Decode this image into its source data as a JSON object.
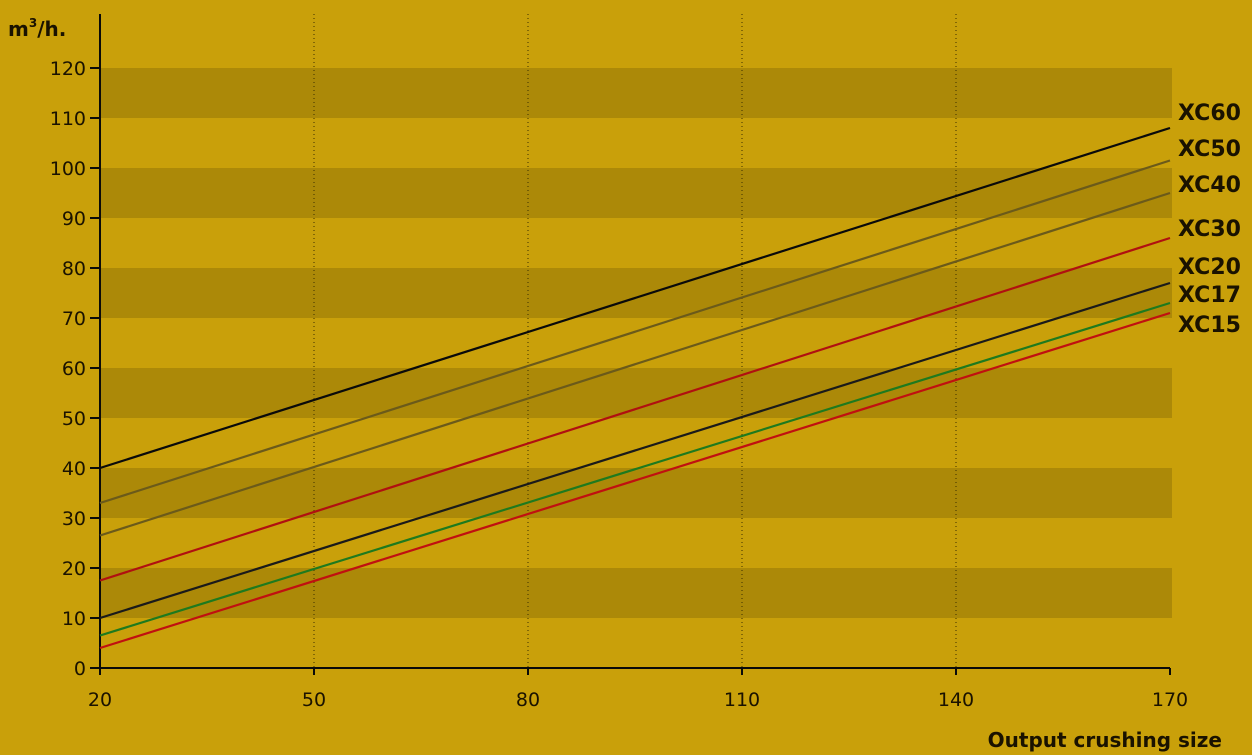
{
  "chart_data": {
    "type": "line",
    "ylabel_base": "m",
    "ylabel_sup": "3",
    "ylabel_suffix": "/h.",
    "xlabel": "Output crushing size",
    "xlim": [
      20,
      170
    ],
    "ylim": [
      0,
      120
    ],
    "x_ticks": [
      20,
      50,
      80,
      110,
      140,
      170
    ],
    "y_ticks": [
      0,
      10,
      20,
      30,
      40,
      50,
      60,
      70,
      80,
      90,
      100,
      110,
      120
    ],
    "band_ranges": [
      [
        10,
        20
      ],
      [
        30,
        40
      ],
      [
        50,
        60
      ],
      [
        70,
        80
      ],
      [
        90,
        100
      ],
      [
        110,
        120
      ]
    ],
    "vertical_grid": [
      50,
      80,
      110,
      140
    ],
    "legend_position": "right-end-of-lines",
    "series": [
      {
        "name": "XC60",
        "color": "#0a0a0a",
        "x": [
          20,
          170
        ],
        "y": [
          40,
          108
        ]
      },
      {
        "name": "XC50",
        "color": "#6b5a1a",
        "x": [
          20,
          170
        ],
        "y": [
          33,
          101.5
        ]
      },
      {
        "name": "XC40",
        "color": "#6b5a1a",
        "x": [
          20,
          170
        ],
        "y": [
          26.5,
          95
        ]
      },
      {
        "name": "XC30",
        "color": "#b01010",
        "x": [
          20,
          170
        ],
        "y": [
          17.5,
          86
        ]
      },
      {
        "name": "XC20",
        "color": "#1a1a1a",
        "x": [
          20,
          170
        ],
        "y": [
          10,
          77
        ]
      },
      {
        "name": "XC17",
        "color": "#1e7a1e",
        "x": [
          20,
          170
        ],
        "y": [
          6.5,
          73
        ]
      },
      {
        "name": "XC15",
        "color": "#c01010",
        "x": [
          20,
          170
        ],
        "y": [
          4,
          71
        ]
      }
    ]
  }
}
